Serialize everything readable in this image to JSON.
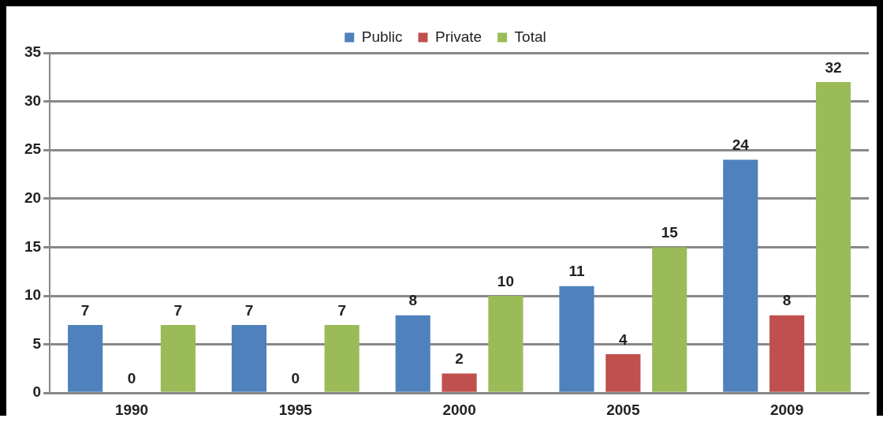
{
  "chart_data": {
    "type": "bar",
    "categories": [
      "1990",
      "1995",
      "2000",
      "2005",
      "2009"
    ],
    "series": [
      {
        "name": "Public",
        "color": "#4f81bd",
        "values": [
          7,
          7,
          8,
          11,
          24
        ]
      },
      {
        "name": "Private",
        "color": "#c0504d",
        "values": [
          0,
          0,
          2,
          4,
          8
        ]
      },
      {
        "name": "Total",
        "color": "#9bbb59",
        "values": [
          7,
          7,
          10,
          15,
          32
        ]
      }
    ],
    "ylim": [
      0,
      35
    ],
    "yticks": [
      0,
      5,
      10,
      15,
      20,
      25,
      30,
      35
    ],
    "grid": "y",
    "legend": "top",
    "data_labels": true
  }
}
